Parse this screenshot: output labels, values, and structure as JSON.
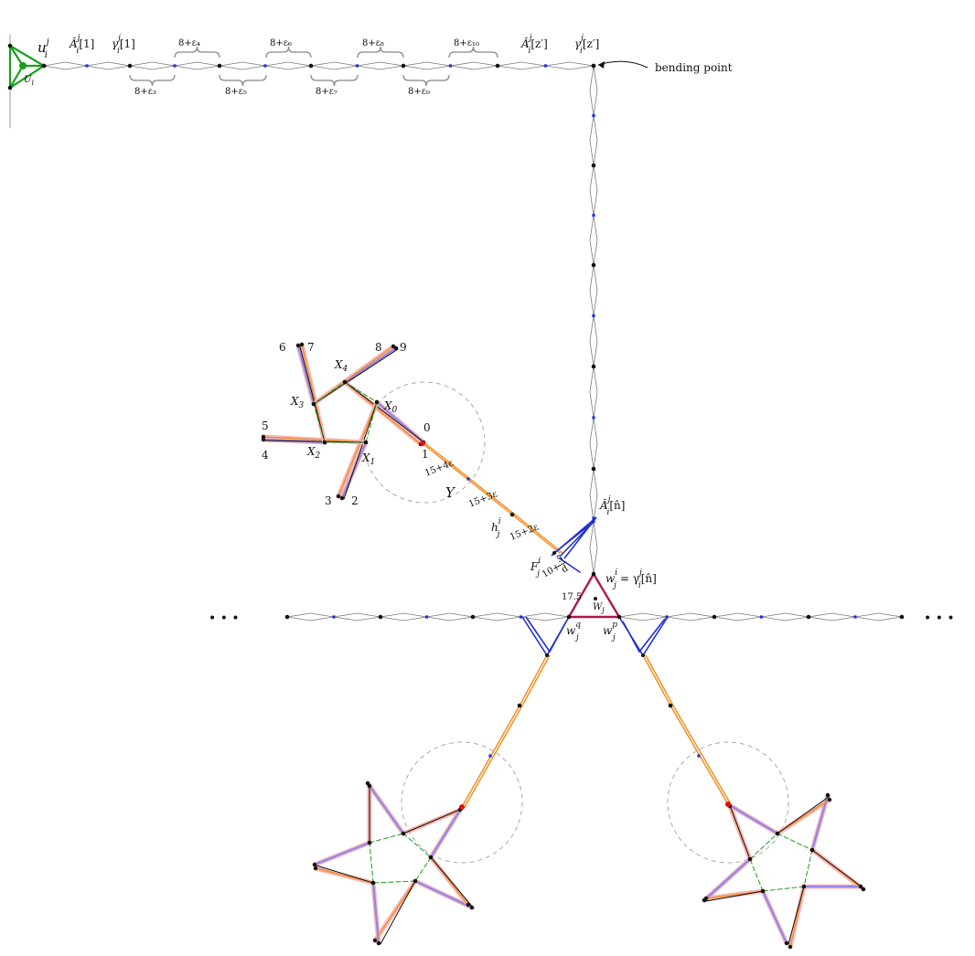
{
  "colors": {
    "vertex": "#111111",
    "gray": "#7a7a7a",
    "blue": "#1f2fd6",
    "orange": "#f28a1a",
    "green": "#1a9e1a",
    "crimson": "#b0154f",
    "red": "#e01010",
    "lavender": "#8f86ee",
    "pink": "#f6b6b6",
    "dashed": "#aaaaaa"
  },
  "labels": {
    "u_top": "u",
    "u_top_sup": "j",
    "u_top_sub": "i",
    "U_i": "U",
    "U_i_sub": "i",
    "A1": "Â",
    "A1_rest": "[1]",
    "gamma1": "γ",
    "gamma1_rest": "[1]",
    "Az": "Â",
    "Az_rest": "[z′]",
    "gammaz": "γ",
    "gammaz_rest": "[z′]",
    "sup_j": "j",
    "sub_i": "i",
    "bending": "bending point",
    "eps_top": [
      "8+ε₄",
      "8+ε₆",
      "8+ε₈",
      "8+ε₁₀"
    ],
    "eps_bottom": [
      "8+ε₃",
      "8+ε₅",
      "8+ε₇",
      "8+ε₉"
    ],
    "An": "Â",
    "An_rest": "[n̂]",
    "wij": "w",
    "wij_rest": "= γ",
    "wij_tail": "[n̂]",
    "W_j": "W",
    "W_j_sub": "j",
    "w_q": "w",
    "w_q_sup": "q",
    "w_p": "w",
    "w_p_sup": "p",
    "sub_j": "j",
    "h_ij": "h",
    "F_ij": "F",
    "Y": "Y",
    "d175": "17.5",
    "edge_15_4e": "15+4ε",
    "edge_15_3e": "15+3ε",
    "edge_15_2e": "15+2ε",
    "edge_10": "10+",
    "frac_num": "5",
    "frac_den": "d",
    "X0": "X",
    "X0_sub": "0",
    "X1": "X",
    "X1_sub": "1",
    "X2": "X",
    "X2_sub": "2",
    "X3": "X",
    "X3_sub": "3",
    "X4": "X",
    "X4_sub": "4",
    "num": [
      "0",
      "1",
      "2",
      "3",
      "4",
      "5",
      "6",
      "7",
      "8",
      "9"
    ],
    "ellipsis": "• • •"
  }
}
